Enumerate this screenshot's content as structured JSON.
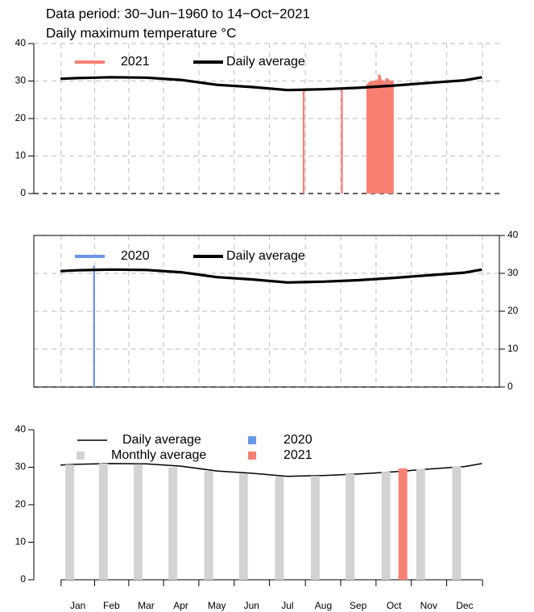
{
  "chart_data": [
    {
      "type": "line",
      "title": "Data period:  30−Jun−1960  to  14−Oct−2021",
      "subtitle": "Daily maximum temperature °C",
      "xlim": [
        -22,
        380
      ],
      "ylim": [
        0,
        40
      ],
      "yticks": [
        0,
        10,
        20,
        30,
        40
      ],
      "grid": true,
      "y_axis_side": "left",
      "series": [
        {
          "name": "2021",
          "type": "bar",
          "color": "#f88073",
          "x": [
            211,
            244,
            266,
            267,
            268,
            269,
            270,
            271,
            272,
            273,
            274,
            275,
            276,
            277,
            278,
            279,
            280,
            281,
            282,
            283,
            284,
            285,
            286,
            287,
            288
          ],
          "values": [
            27.8,
            27.8,
            29.2,
            29.5,
            29.8,
            30.0,
            29.7,
            30.1,
            29.9,
            30.2,
            30.0,
            30.4,
            31.8,
            31.5,
            30.5,
            30.2,
            30.0,
            29.8,
            30.5,
            30.8,
            30.6,
            30.2,
            30.1,
            29.9,
            30.2
          ]
        },
        {
          "name": "Daily average",
          "type": "line",
          "color": "#000000",
          "x": [
            1,
            16,
            45,
            75,
            105,
            136,
            166,
            197,
            228,
            258,
            289,
            319,
            350,
            365
          ],
          "values": [
            30.6,
            30.8,
            31.0,
            30.9,
            30.3,
            29.0,
            28.4,
            27.6,
            27.8,
            28.2,
            28.8,
            29.5,
            30.2,
            31.0
          ]
        }
      ]
    },
    {
      "type": "line",
      "xlim": [
        -22,
        380
      ],
      "ylim": [
        0,
        40
      ],
      "yticks": [
        0,
        10,
        20,
        30,
        40
      ],
      "grid": true,
      "y_axis_side": "right",
      "series": [
        {
          "name": "2020",
          "type": "bar",
          "color": "#6a96e8",
          "x": [
            30
          ],
          "values": [
            32.0
          ]
        },
        {
          "name": "Daily average",
          "type": "line",
          "color": "#000000",
          "x": [
            1,
            16,
            45,
            75,
            105,
            136,
            166,
            197,
            228,
            258,
            289,
            319,
            350,
            365
          ],
          "values": [
            30.6,
            30.8,
            31.0,
            30.9,
            30.3,
            29.0,
            28.4,
            27.6,
            27.8,
            28.2,
            28.8,
            29.5,
            30.2,
            31.0
          ]
        }
      ]
    },
    {
      "type": "line",
      "xlim": [
        -22,
        380
      ],
      "ylim": [
        0,
        40
      ],
      "yticks": [
        0,
        10,
        20,
        30,
        40
      ],
      "grid": false,
      "y_axis_side": "left",
      "xticks": [
        {
          "value": 16,
          "label": "Jan"
        },
        {
          "value": 45,
          "label": "Feb"
        },
        {
          "value": 75,
          "label": "Mar"
        },
        {
          "value": 105,
          "label": "Apr"
        },
        {
          "value": 136,
          "label": "May"
        },
        {
          "value": 166,
          "label": "Jun"
        },
        {
          "value": 197,
          "label": "Jul"
        },
        {
          "value": 228,
          "label": "Aug"
        },
        {
          "value": 258,
          "label": "Sep"
        },
        {
          "value": 289,
          "label": "Oct"
        },
        {
          "value": 319,
          "label": "Nov"
        },
        {
          "value": 350,
          "label": "Dec"
        }
      ],
      "series": [
        {
          "name": "Daily average",
          "type": "line",
          "color": "#000000",
          "x": [
            1,
            16,
            45,
            75,
            105,
            136,
            166,
            197,
            228,
            258,
            289,
            319,
            350,
            365
          ],
          "values": [
            30.6,
            30.8,
            31.0,
            30.9,
            30.3,
            29.0,
            28.4,
            27.6,
            27.8,
            28.2,
            28.8,
            29.5,
            30.2,
            31.0
          ]
        },
        {
          "name": "Monthly average",
          "type": "bar",
          "color": "#d3d3d3",
          "x": [
            16,
            45,
            75,
            105,
            136,
            166,
            197,
            228,
            258,
            289,
            319,
            350
          ],
          "values": [
            30.7,
            31.0,
            30.8,
            30.0,
            29.0,
            28.3,
            27.5,
            27.7,
            28.2,
            28.8,
            29.6,
            30.3
          ]
        },
        {
          "name": "2020",
          "type": "bar",
          "color": "#6a96e8",
          "x": [],
          "values": []
        },
        {
          "name": "2021",
          "type": "bar",
          "color": "#f88073",
          "x": [
            289
          ],
          "values": [
            29.7
          ]
        }
      ]
    }
  ]
}
